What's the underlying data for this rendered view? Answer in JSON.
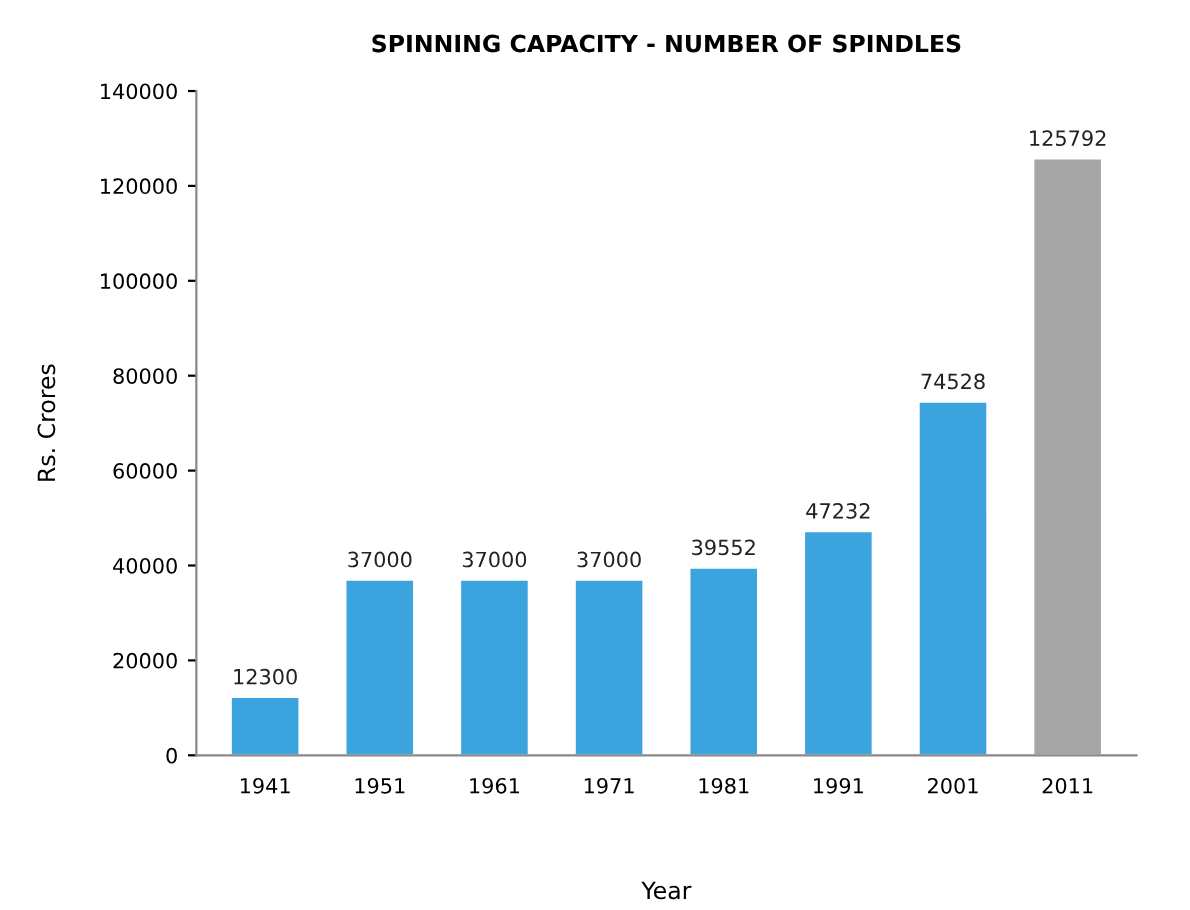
{
  "chart_data": {
    "type": "bar",
    "title": "SPINNING CAPACITY - NUMBER OF SPINDLES",
    "xlabel": "Year",
    "ylabel": "Rs. Crores",
    "categories": [
      "1941",
      "1951",
      "1961",
      "1971",
      "1981",
      "1991",
      "2001",
      "2011"
    ],
    "values": [
      12300,
      37000,
      37000,
      37000,
      39552,
      47232,
      74528,
      125792
    ],
    "colors": [
      "#3ba3de",
      "#3ba3de",
      "#3ba3de",
      "#3ba3de",
      "#3ba3de",
      "#3ba3de",
      "#3ba3de",
      "#a6a6a6"
    ],
    "ylim": [
      0,
      140000
    ],
    "yticks": [
      0,
      20000,
      40000,
      60000,
      80000,
      100000,
      120000,
      140000
    ],
    "grid": false,
    "data_labels": true
  }
}
